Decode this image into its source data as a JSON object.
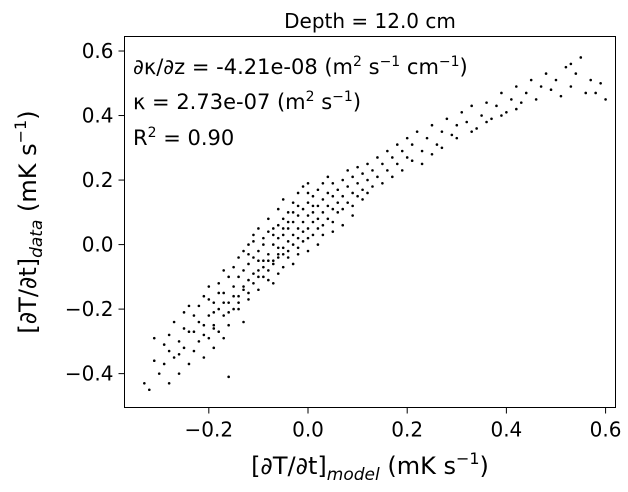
{
  "chart_data": {
    "type": "scatter",
    "title": "Depth = 12.0 cm",
    "xlabel": {
      "main": "[∂T/∂t]",
      "sub": "model",
      "unit_pre": " (mK s",
      "unit_sup": "−1",
      "unit_post": ")"
    },
    "ylabel": {
      "main": "[∂T/∂t]",
      "sub": "data",
      "unit_pre": " (mK s",
      "unit_sup": "−1",
      "unit_post": ")"
    },
    "xlim": [
      -0.37,
      0.62
    ],
    "ylim": [
      -0.505,
      0.645
    ],
    "xticks": [
      -0.2,
      0.0,
      0.2,
      0.4,
      0.6
    ],
    "xtick_labels": [
      "−0.2",
      "0.0",
      "0.2",
      "0.4",
      "0.6"
    ],
    "yticks": [
      -0.4,
      -0.2,
      0.0,
      0.2,
      0.4,
      0.6
    ],
    "ytick_labels": [
      "−0.4",
      "−0.2",
      "0.0",
      "0.2",
      "0.4",
      "0.6"
    ],
    "grid": false,
    "annotations": {
      "line1": {
        "pre": "∂κ/∂z = -4.21e-08 (m",
        "sup1": "2",
        "mid": " s",
        "sup2": "−1",
        "mid2": " cm",
        "sup3": "−1",
        "post": ")"
      },
      "line2": {
        "pre": "κ = 2.73e-07 (m",
        "sup1": "2",
        "mid": " s",
        "sup2": "−1",
        "post": ")"
      },
      "line3": {
        "pre": "R",
        "sup1": "2",
        "post": " = 0.90"
      }
    },
    "marker_color": "#000000",
    "points": [
      [
        -0.33,
        -0.43
      ],
      [
        -0.32,
        -0.45
      ],
      [
        -0.31,
        -0.36
      ],
      [
        -0.31,
        -0.29
      ],
      [
        -0.3,
        -0.4
      ],
      [
        -0.29,
        -0.37
      ],
      [
        -0.28,
        -0.43
      ],
      [
        -0.28,
        -0.28
      ],
      [
        -0.27,
        -0.35
      ],
      [
        -0.26,
        -0.4
      ],
      [
        -0.26,
        -0.3
      ],
      [
        -0.25,
        -0.32
      ],
      [
        -0.25,
        -0.21
      ],
      [
        -0.24,
        -0.37
      ],
      [
        -0.24,
        -0.27
      ],
      [
        -0.23,
        -0.33
      ],
      [
        -0.23,
        -0.22
      ],
      [
        -0.22,
        -0.3
      ],
      [
        -0.22,
        -0.19
      ],
      [
        -0.21,
        -0.25
      ],
      [
        -0.21,
        -0.35
      ],
      [
        -0.21,
        -0.16
      ],
      [
        -0.2,
        -0.22
      ],
      [
        -0.2,
        -0.29
      ],
      [
        -0.2,
        -0.13
      ],
      [
        -0.19,
        -0.25
      ],
      [
        -0.19,
        -0.18
      ],
      [
        -0.19,
        -0.32
      ],
      [
        -0.18,
        -0.2
      ],
      [
        -0.18,
        -0.12
      ],
      [
        -0.18,
        -0.27
      ],
      [
        -0.17,
        -0.15
      ],
      [
        -0.17,
        -0.22
      ],
      [
        -0.17,
        -0.08
      ],
      [
        -0.16,
        -0.18
      ],
      [
        -0.16,
        -0.1
      ],
      [
        -0.16,
        -0.25
      ],
      [
        -0.16,
        -0.41
      ],
      [
        -0.15,
        -0.13
      ],
      [
        -0.15,
        -0.07
      ],
      [
        -0.15,
        -0.2
      ],
      [
        -0.14,
        -0.1
      ],
      [
        -0.14,
        -0.04
      ],
      [
        -0.14,
        -0.16
      ],
      [
        -0.13,
        -0.08
      ],
      [
        -0.13,
        -0.02
      ],
      [
        -0.13,
        -0.13
      ],
      [
        -0.13,
        -0.24
      ],
      [
        -0.12,
        -0.06
      ],
      [
        -0.12,
        0.0
      ],
      [
        -0.12,
        -0.11
      ],
      [
        -0.11,
        -0.04
      ],
      [
        -0.11,
        -0.09
      ],
      [
        -0.11,
        0.03
      ],
      [
        -0.1,
        -0.08
      ],
      [
        -0.1,
        -0.02
      ],
      [
        -0.1,
        -0.14
      ],
      [
        -0.1,
        0.05
      ],
      [
        -0.09,
        -0.05
      ],
      [
        -0.09,
        0.02
      ],
      [
        -0.09,
        -0.1
      ],
      [
        -0.08,
        -0.03
      ],
      [
        -0.08,
        0.04
      ],
      [
        -0.08,
        -0.08
      ],
      [
        -0.08,
        0.08
      ],
      [
        -0.07,
        0.0
      ],
      [
        -0.07,
        -0.05
      ],
      [
        -0.07,
        0.05
      ],
      [
        -0.07,
        -0.12
      ],
      [
        -0.06,
        0.02
      ],
      [
        -0.06,
        0.06
      ],
      [
        -0.06,
        -0.03
      ],
      [
        -0.06,
        0.11
      ],
      [
        -0.05,
        0.03
      ],
      [
        -0.05,
        -0.01
      ],
      [
        -0.05,
        0.08
      ],
      [
        -0.05,
        -0.07
      ],
      [
        -0.05,
        0.14
      ],
      [
        -0.04,
        0.01
      ],
      [
        -0.04,
        0.05
      ],
      [
        -0.04,
        -0.04
      ],
      [
        -0.04,
        0.1
      ],
      [
        -0.03,
        0.03
      ],
      [
        -0.03,
        0.07
      ],
      [
        -0.03,
        0.0
      ],
      [
        -0.03,
        0.13
      ],
      [
        -0.02,
        0.05
      ],
      [
        -0.02,
        0.09
      ],
      [
        -0.02,
        0.02
      ],
      [
        -0.02,
        0.16
      ],
      [
        -0.01,
        0.07
      ],
      [
        -0.01,
        0.11
      ],
      [
        -0.01,
        0.04
      ],
      [
        -0.01,
        0.18
      ],
      [
        0.0,
        0.09
      ],
      [
        0.0,
        0.05
      ],
      [
        0.0,
        0.13
      ],
      [
        0.0,
        0.19
      ],
      [
        0.01,
        0.1
      ],
      [
        0.01,
        0.15
      ],
      [
        0.01,
        0.07
      ],
      [
        0.02,
        0.12
      ],
      [
        0.02,
        0.17
      ],
      [
        0.02,
        0.08
      ],
      [
        0.03,
        0.14
      ],
      [
        0.03,
        0.19
      ],
      [
        0.03,
        0.1
      ],
      [
        0.04,
        0.16
      ],
      [
        0.04,
        0.12
      ],
      [
        0.04,
        0.21
      ],
      [
        0.05,
        0.15
      ],
      [
        0.05,
        0.19
      ],
      [
        0.05,
        0.11
      ],
      [
        0.06,
        0.17
      ],
      [
        0.06,
        0.13
      ],
      [
        0.07,
        0.2
      ],
      [
        0.07,
        0.15
      ],
      [
        0.08,
        0.18
      ],
      [
        0.08,
        0.23
      ],
      [
        0.09,
        0.16
      ],
      [
        0.09,
        0.21
      ],
      [
        0.1,
        0.19
      ],
      [
        0.1,
        0.24
      ],
      [
        0.11,
        0.22
      ],
      [
        0.11,
        0.17
      ],
      [
        0.12,
        0.25
      ],
      [
        0.12,
        0.2
      ],
      [
        0.13,
        0.23
      ],
      [
        0.14,
        0.27
      ],
      [
        0.14,
        0.21
      ],
      [
        0.15,
        0.25
      ],
      [
        0.16,
        0.29
      ],
      [
        0.16,
        0.23
      ],
      [
        0.17,
        0.27
      ],
      [
        0.18,
        0.31
      ],
      [
        0.18,
        0.25
      ],
      [
        0.19,
        0.29
      ],
      [
        0.2,
        0.33
      ],
      [
        0.2,
        0.27
      ],
      [
        0.21,
        0.31
      ],
      [
        0.22,
        0.35
      ],
      [
        0.23,
        0.29
      ],
      [
        0.24,
        0.33
      ],
      [
        0.25,
        0.37
      ],
      [
        0.26,
        0.31
      ],
      [
        0.27,
        0.35
      ],
      [
        0.28,
        0.39
      ],
      [
        0.29,
        0.34
      ],
      [
        0.3,
        0.37
      ],
      [
        0.31,
        0.41
      ],
      [
        0.32,
        0.38
      ],
      [
        0.33,
        0.43
      ],
      [
        0.34,
        0.36
      ],
      [
        0.35,
        0.4
      ],
      [
        0.36,
        0.44
      ],
      [
        0.37,
        0.39
      ],
      [
        0.38,
        0.43
      ],
      [
        0.39,
        0.47
      ],
      [
        0.4,
        0.41
      ],
      [
        0.41,
        0.45
      ],
      [
        0.42,
        0.49
      ],
      [
        0.43,
        0.44
      ],
      [
        0.44,
        0.47
      ],
      [
        0.45,
        0.51
      ],
      [
        0.46,
        0.45
      ],
      [
        0.47,
        0.49
      ],
      [
        0.48,
        0.53
      ],
      [
        0.49,
        0.48
      ],
      [
        0.5,
        0.51
      ],
      [
        0.51,
        0.46
      ],
      [
        0.52,
        0.55
      ],
      [
        0.53,
        0.49
      ],
      [
        0.54,
        0.53
      ],
      [
        0.55,
        0.58
      ],
      [
        0.56,
        0.47
      ],
      [
        0.57,
        0.51
      ],
      [
        0.58,
        0.47
      ],
      [
        0.59,
        0.5
      ],
      [
        0.6,
        0.45
      ],
      [
        0.53,
        0.56
      ],
      [
        -0.25,
        -0.26
      ],
      [
        -0.22,
        -0.24
      ],
      [
        -0.19,
        -0.21
      ],
      [
        -0.17,
        -0.18
      ],
      [
        -0.15,
        -0.16
      ],
      [
        -0.13,
        -0.14
      ],
      [
        -0.11,
        -0.12
      ],
      [
        -0.09,
        -0.07
      ],
      [
        -0.07,
        -0.06
      ],
      [
        -0.05,
        -0.03
      ],
      [
        -0.04,
        -0.02
      ],
      [
        -0.03,
        -0.06
      ],
      [
        -0.02,
        -0.01
      ],
      [
        -0.01,
        0.01
      ],
      [
        0.0,
        0.02
      ],
      [
        0.01,
        0.03
      ],
      [
        0.02,
        0.05
      ],
      [
        0.03,
        0.06
      ],
      [
        0.04,
        0.08
      ],
      [
        0.05,
        0.07
      ],
      [
        0.06,
        0.1
      ],
      [
        0.07,
        0.11
      ],
      [
        0.08,
        0.13
      ],
      [
        0.09,
        0.12
      ],
      [
        0.1,
        0.15
      ],
      [
        0.11,
        0.14
      ],
      [
        0.12,
        0.16
      ],
      [
        0.13,
        0.18
      ],
      [
        0.15,
        0.19
      ],
      [
        0.17,
        0.21
      ],
      [
        0.19,
        0.23
      ],
      [
        0.21,
        0.26
      ],
      [
        0.23,
        0.25
      ],
      [
        0.25,
        0.28
      ],
      [
        0.27,
        0.3
      ],
      [
        0.3,
        0.33
      ],
      [
        0.33,
        0.35
      ],
      [
        0.36,
        0.38
      ],
      [
        0.39,
        0.4
      ],
      [
        0.42,
        0.42
      ],
      [
        -0.28,
        -0.33
      ],
      [
        -0.27,
        -0.24
      ],
      [
        -0.24,
        -0.19
      ],
      [
        -0.23,
        -0.27
      ],
      [
        -0.2,
        -0.17
      ],
      [
        -0.18,
        -0.15
      ],
      [
        -0.17,
        -0.29
      ],
      [
        -0.14,
        -0.2
      ],
      [
        -0.12,
        -0.17
      ],
      [
        -0.1,
        -0.05
      ],
      [
        -0.08,
        -0.11
      ],
      [
        -0.06,
        -0.09
      ],
      [
        -0.04,
        0.07
      ],
      [
        -0.02,
        -0.03
      ],
      [
        0.0,
        -0.02
      ],
      [
        0.02,
        0.0
      ],
      [
        0.03,
        0.03
      ],
      [
        0.05,
        0.04
      ],
      [
        0.07,
        0.06
      ],
      [
        0.09,
        0.09
      ],
      [
        -0.12,
        -0.03
      ],
      [
        -0.11,
        0.01
      ],
      [
        -0.09,
        0.0
      ],
      [
        -0.07,
        0.03
      ],
      [
        -0.06,
        -0.01
      ],
      [
        -0.05,
        0.05
      ],
      [
        -0.03,
        0.1
      ],
      [
        -0.02,
        0.12
      ],
      [
        0.0,
        0.16
      ],
      [
        0.01,
        0.12
      ],
      [
        -0.29,
        -0.31
      ],
      [
        -0.26,
        -0.34
      ],
      [
        -0.21,
        -0.28
      ],
      [
        -0.19,
        -0.26
      ],
      [
        -0.16,
        -0.21
      ],
      [
        -0.14,
        -0.18
      ],
      [
        -0.12,
        -0.15
      ],
      [
        -0.1,
        -0.1
      ],
      [
        -0.08,
        -0.05
      ],
      [
        -0.06,
        -0.04
      ]
    ]
  }
}
